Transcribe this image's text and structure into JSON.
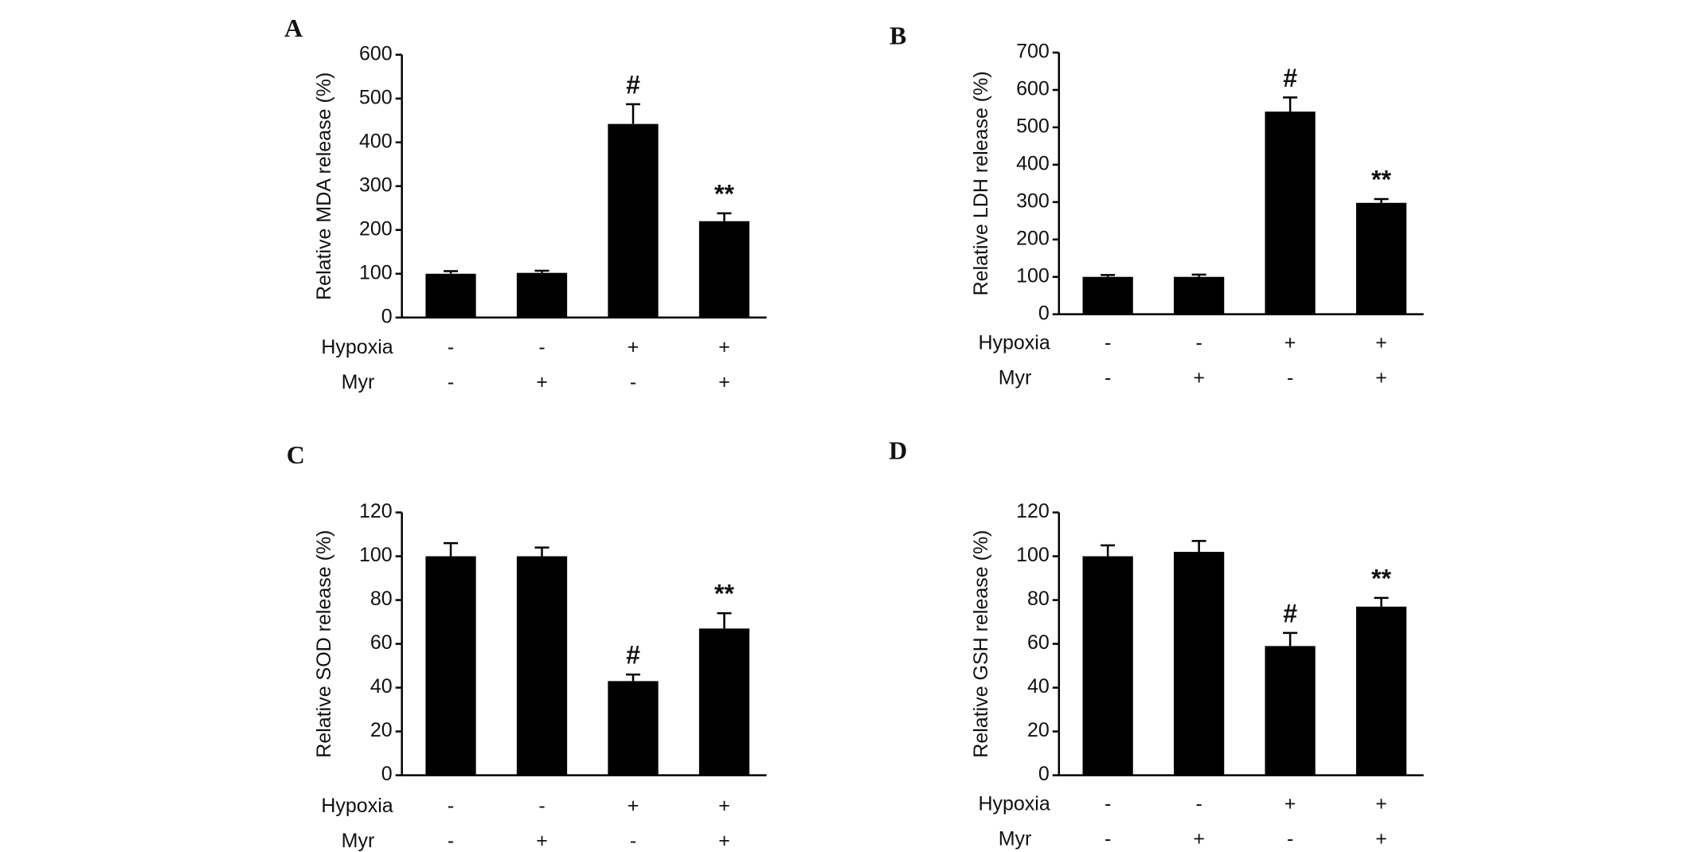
{
  "chart_data": [
    {
      "type": "bar",
      "title": "A",
      "ylabel": "Relative MDA release (%)",
      "color": "#000000",
      "values": [
        100,
        102,
        442,
        220
      ],
      "errors": [
        6,
        5,
        45,
        18
      ],
      "value_annotations": [
        null,
        null,
        "#",
        "**"
      ],
      "conditions": [
        {
          "name": "Hypoxia",
          "labels": [
            "-",
            "-",
            "+",
            "+"
          ]
        },
        {
          "name": "Myr",
          "labels": [
            "-",
            "+",
            "-",
            "+"
          ]
        }
      ],
      "ylim": [
        0,
        600
      ],
      "yticks": [
        0,
        100,
        200,
        300,
        400,
        500,
        600
      ]
    },
    {
      "type": "bar",
      "title": "B",
      "ylabel": "Relative LDH release (%)",
      "color": "#000000",
      "values": [
        100,
        100,
        542,
        298
      ],
      "errors": [
        5,
        6,
        38,
        10
      ],
      "value_annotations": [
        null,
        null,
        "#",
        "**"
      ],
      "conditions": [
        {
          "name": "Hypoxia",
          "labels": [
            "-",
            "-",
            "+",
            "+"
          ]
        },
        {
          "name": "Myr",
          "labels": [
            "-",
            "+",
            "-",
            "+"
          ]
        }
      ],
      "ylim": [
        0,
        700
      ],
      "yticks": [
        0,
        100,
        200,
        300,
        400,
        500,
        600,
        700
      ]
    },
    {
      "type": "bar",
      "title": "C",
      "ylabel": "Relative SOD release (%)",
      "color": "#000000",
      "values": [
        100,
        100,
        43,
        67
      ],
      "errors": [
        6,
        4,
        3,
        7
      ],
      "value_annotations": [
        null,
        null,
        "#",
        "**"
      ],
      "conditions": [
        {
          "name": "Hypoxia",
          "labels": [
            "-",
            "-",
            "+",
            "+"
          ]
        },
        {
          "name": "Myr",
          "labels": [
            "-",
            "+",
            "-",
            "+"
          ]
        }
      ],
      "ylim": [
        0,
        120
      ],
      "yticks": [
        0,
        20,
        40,
        60,
        80,
        100,
        120
      ]
    },
    {
      "type": "bar",
      "title": "D",
      "ylabel": "Relative GSH release (%)",
      "color": "#000000",
      "values": [
        100,
        102,
        59,
        77
      ],
      "errors": [
        5,
        5,
        6,
        4
      ],
      "value_annotations": [
        null,
        null,
        "#",
        "**"
      ],
      "conditions": [
        {
          "name": "Hypoxia",
          "labels": [
            "-",
            "-",
            "+",
            "+"
          ]
        },
        {
          "name": "Myr",
          "labels": [
            "-",
            "+",
            "-",
            "+"
          ]
        }
      ],
      "ylim": [
        0,
        120
      ],
      "yticks": [
        0,
        20,
        40,
        60,
        80,
        100,
        120
      ]
    }
  ]
}
